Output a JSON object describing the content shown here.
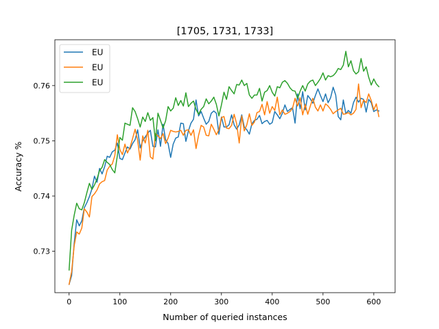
{
  "chart_data": {
    "type": "line",
    "title": "[1705, 1731, 1733]",
    "xlabel": "Number of queried instances",
    "ylabel": "Accuracy %",
    "xlim": [
      -28,
      642
    ],
    "ylim": [
      0.7225,
      0.7683
    ],
    "xticks": [
      0,
      100,
      200,
      300,
      400,
      500,
      600
    ],
    "yticks": [
      0.73,
      0.74,
      0.75,
      0.76
    ],
    "ytick_labels": [
      "0.73",
      "0.74",
      "0.75",
      "0.76"
    ],
    "legend_position": "upper-left",
    "grid": false,
    "x": [
      0,
      5,
      10,
      15,
      20,
      25,
      30,
      35,
      40,
      45,
      50,
      55,
      60,
      65,
      70,
      75,
      80,
      85,
      90,
      95,
      100,
      105,
      110,
      115,
      120,
      125,
      130,
      135,
      140,
      145,
      150,
      155,
      160,
      165,
      170,
      175,
      180,
      185,
      190,
      195,
      200,
      205,
      210,
      215,
      220,
      225,
      230,
      235,
      240,
      245,
      250,
      255,
      260,
      265,
      270,
      275,
      280,
      285,
      290,
      295,
      300,
      305,
      310,
      315,
      320,
      325,
      330,
      335,
      340,
      345,
      350,
      355,
      360,
      365,
      370,
      375,
      380,
      385,
      390,
      395,
      400,
      405,
      410,
      415,
      420,
      425,
      430,
      435,
      440,
      445,
      450,
      455,
      460,
      465,
      470,
      475,
      480,
      485,
      490,
      495,
      500,
      505,
      510,
      515,
      520,
      525,
      530,
      535,
      540,
      545,
      550,
      555,
      560,
      565,
      570,
      575,
      580,
      585,
      590,
      595,
      600,
      605,
      610
    ],
    "series": [
      {
        "name": "EU",
        "color": "#1f77b4",
        "values": [
          0.724,
          0.7256,
          0.7314,
          0.7357,
          0.7346,
          0.7355,
          0.7379,
          0.7388,
          0.7399,
          0.7413,
          0.7436,
          0.7425,
          0.745,
          0.744,
          0.7453,
          0.7472,
          0.747,
          0.748,
          0.7483,
          0.7496,
          0.7468,
          0.7466,
          0.7478,
          0.7489,
          0.7485,
          0.7495,
          0.7502,
          0.752,
          0.7487,
          0.75,
          0.7507,
          0.7514,
          0.7519,
          0.749,
          0.7489,
          0.752,
          0.749,
          0.753,
          0.7502,
          0.7495,
          0.747,
          0.7494,
          0.7505,
          0.7507,
          0.7532,
          0.7531,
          0.7499,
          0.7518,
          0.7532,
          0.7539,
          0.7574,
          0.7545,
          0.7553,
          0.7541,
          0.753,
          0.7535,
          0.755,
          0.7554,
          0.755,
          0.7512,
          0.7543,
          0.7525,
          0.7525,
          0.7529,
          0.7547,
          0.7529,
          0.7521,
          0.7529,
          0.7547,
          0.7525,
          0.752,
          0.7512,
          0.7531,
          0.7537,
          0.7539,
          0.7546,
          0.7531,
          0.7535,
          0.7537,
          0.753,
          0.7533,
          0.7553,
          0.7547,
          0.754,
          0.755,
          0.7565,
          0.7553,
          0.7557,
          0.756,
          0.7532,
          0.7585,
          0.7558,
          0.7589,
          0.7556,
          0.7582,
          0.7576,
          0.7568,
          0.7582,
          0.7594,
          0.7582,
          0.7571,
          0.7585,
          0.7569,
          0.7578,
          0.7597,
          0.7583,
          0.7544,
          0.7538,
          0.7574,
          0.7549,
          0.7555,
          0.755,
          0.7569,
          0.7579,
          0.757,
          0.7577,
          0.7575,
          0.7552,
          0.7575,
          0.7569,
          0.7553,
          0.7556,
          0.7554
        ]
      },
      {
        "name": "EU",
        "color": "#ff7f0e",
        "values": [
          0.724,
          0.7263,
          0.731,
          0.7335,
          0.7331,
          0.7342,
          0.7377,
          0.7371,
          0.7362,
          0.7399,
          0.7404,
          0.7411,
          0.7422,
          0.7426,
          0.7428,
          0.7447,
          0.7454,
          0.7458,
          0.7473,
          0.7511,
          0.7484,
          0.7475,
          0.7494,
          0.7478,
          0.7488,
          0.7504,
          0.7521,
          0.7501,
          0.7465,
          0.7509,
          0.7496,
          0.7519,
          0.7471,
          0.7467,
          0.7513,
          0.7509,
          0.7504,
          0.7513,
          0.7495,
          0.7505,
          0.7519,
          0.7517,
          0.7516,
          0.7517,
          0.7519,
          0.751,
          0.7519,
          0.752,
          0.751,
          0.752,
          0.7486,
          0.751,
          0.7528,
          0.7525,
          0.751,
          0.7509,
          0.753,
          0.7521,
          0.7511,
          0.752,
          0.7542,
          0.7544,
          0.7523,
          0.7522,
          0.7528,
          0.7548,
          0.7531,
          0.7496,
          0.7545,
          0.7518,
          0.7529,
          0.7549,
          0.7528,
          0.7534,
          0.7551,
          0.7553,
          0.7566,
          0.7547,
          0.7571,
          0.755,
          0.7562,
          0.7555,
          0.7579,
          0.7547,
          0.7556,
          0.7548,
          0.755,
          0.7553,
          0.7559,
          0.7577,
          0.7563,
          0.7578,
          0.7547,
          0.7566,
          0.7548,
          0.7563,
          0.7577,
          0.7561,
          0.7554,
          0.7565,
          0.7554,
          0.7567,
          0.7563,
          0.7557,
          0.7549,
          0.7553,
          0.7556,
          0.7559,
          0.7548,
          0.7549,
          0.7551,
          0.7547,
          0.755,
          0.7557,
          0.7603,
          0.756,
          0.7574,
          0.7569,
          0.7585,
          0.7573,
          0.7556,
          0.7567,
          0.7544
        ]
      },
      {
        "name": "EU",
        "color": "#2ca02c",
        "values": [
          0.7266,
          0.7338,
          0.7365,
          0.7387,
          0.7377,
          0.7375,
          0.7388,
          0.7406,
          0.7423,
          0.7412,
          0.742,
          0.7431,
          0.7446,
          0.7452,
          0.7466,
          0.7461,
          0.7457,
          0.7448,
          0.7442,
          0.7473,
          0.7506,
          0.7501,
          0.7532,
          0.753,
          0.7528,
          0.756,
          0.7553,
          0.754,
          0.7525,
          0.7543,
          0.7535,
          0.7551,
          0.7537,
          0.7542,
          0.75,
          0.755,
          0.7537,
          0.7523,
          0.7536,
          0.7562,
          0.7554,
          0.7559,
          0.7578,
          0.7564,
          0.7573,
          0.7563,
          0.7587,
          0.7562,
          0.7568,
          0.7572,
          0.7557,
          0.7548,
          0.7557,
          0.7562,
          0.7576,
          0.7567,
          0.7572,
          0.7579,
          0.7566,
          0.7545,
          0.7565,
          0.7588,
          0.7575,
          0.7598,
          0.7591,
          0.7585,
          0.7602,
          0.7601,
          0.761,
          0.76,
          0.7604,
          0.7583,
          0.7577,
          0.7583,
          0.7583,
          0.7595,
          0.7572,
          0.7588,
          0.7591,
          0.76,
          0.7588,
          0.7581,
          0.7598,
          0.7596,
          0.7606,
          0.7609,
          0.7604,
          0.7596,
          0.7591,
          0.759,
          0.7577,
          0.759,
          0.76,
          0.759,
          0.7603,
          0.7608,
          0.761,
          0.76,
          0.7606,
          0.7613,
          0.7623,
          0.761,
          0.7618,
          0.7616,
          0.7618,
          0.7623,
          0.7631,
          0.7629,
          0.7637,
          0.7662,
          0.7634,
          0.7645,
          0.7627,
          0.7621,
          0.7625,
          0.7649,
          0.7626,
          0.7634,
          0.7615,
          0.7601,
          0.7612,
          0.7603,
          0.7598
        ]
      }
    ]
  }
}
